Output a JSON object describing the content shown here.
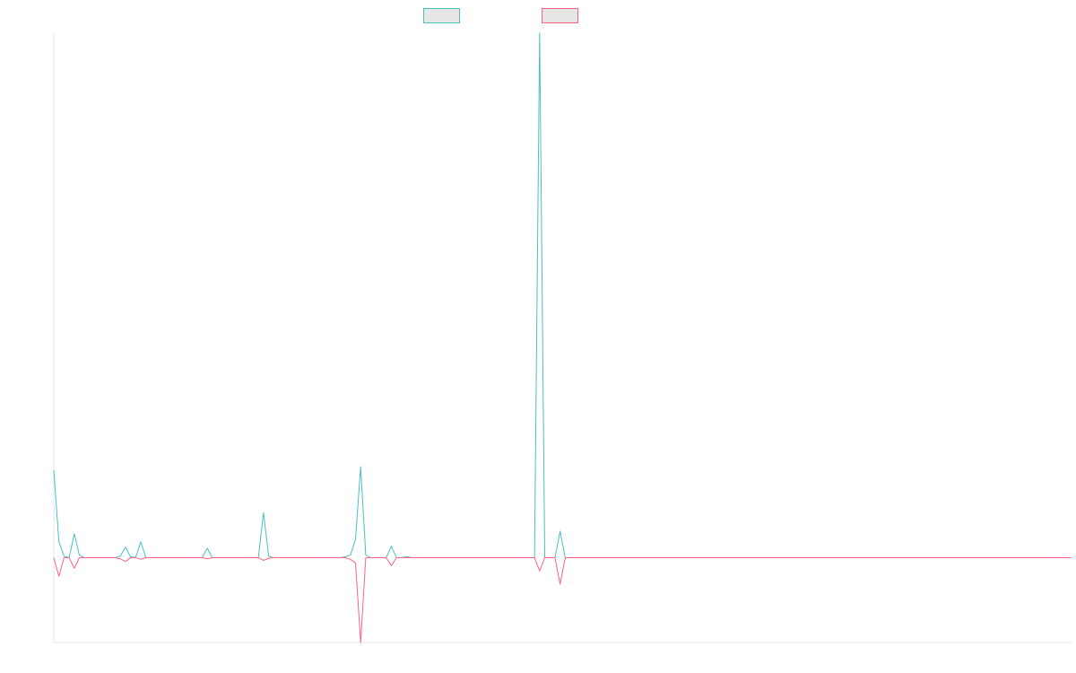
{
  "chart_data": {
    "type": "line",
    "title": "",
    "xlabel": "",
    "ylabel": "",
    "legend_position": "top-center",
    "grid": false,
    "x_count": 200,
    "ylim": [
      -16,
      99
    ],
    "colors": {
      "series_a": "#4bc0c0",
      "series_b": "#ff6384",
      "legend_fill": "#e6e6e6",
      "axis": "#e6e6e6"
    },
    "series": [
      {
        "key": "series_a",
        "color": "#4bc0c0",
        "points": [
          [
            0,
            16.5
          ],
          [
            1,
            3.0
          ],
          [
            2,
            0.3
          ],
          [
            3,
            0
          ],
          [
            4,
            4.5
          ],
          [
            5,
            0.5
          ],
          [
            13,
            0.3
          ],
          [
            14,
            2.0
          ],
          [
            15,
            0.2
          ],
          [
            16,
            0
          ],
          [
            17,
            3.0
          ],
          [
            18,
            0
          ],
          [
            29,
            0
          ],
          [
            30,
            1.8
          ],
          [
            31,
            0
          ],
          [
            40,
            0
          ],
          [
            41,
            8.5
          ],
          [
            42,
            0.3
          ],
          [
            57,
            0.2
          ],
          [
            58,
            0.5
          ],
          [
            59,
            3.5
          ],
          [
            60,
            17.2
          ],
          [
            61,
            0.5
          ],
          [
            65,
            0
          ],
          [
            66,
            2.2
          ],
          [
            67,
            0
          ],
          [
            68,
            0
          ],
          [
            69,
            0.2
          ],
          [
            70,
            0
          ],
          [
            94,
            0
          ],
          [
            95,
            99
          ],
          [
            96,
            0
          ],
          [
            98,
            0
          ],
          [
            99,
            5.0
          ],
          [
            100,
            0
          ],
          [
            199,
            0
          ]
        ]
      },
      {
        "key": "series_b",
        "color": "#ff6384",
        "points": [
          [
            0,
            0
          ],
          [
            1,
            -3.5
          ],
          [
            2,
            0
          ],
          [
            3,
            0
          ],
          [
            4,
            -2.0
          ],
          [
            5,
            0
          ],
          [
            13,
            -0.2
          ],
          [
            14,
            -0.7
          ],
          [
            15,
            0
          ],
          [
            16,
            0
          ],
          [
            17,
            -0.3
          ],
          [
            18,
            0
          ],
          [
            29,
            0
          ],
          [
            30,
            -0.2
          ],
          [
            31,
            0
          ],
          [
            40,
            0
          ],
          [
            41,
            -0.5
          ],
          [
            42,
            -0.1
          ],
          [
            57,
            0
          ],
          [
            58,
            -0.3
          ],
          [
            59,
            -1.0
          ],
          [
            60,
            -16
          ],
          [
            61,
            0
          ],
          [
            65,
            0
          ],
          [
            66,
            -1.5
          ],
          [
            67,
            0
          ],
          [
            68,
            0
          ],
          [
            69,
            0
          ],
          [
            70,
            0
          ],
          [
            94,
            0
          ],
          [
            95,
            -2.5
          ],
          [
            96,
            0
          ],
          [
            98,
            0
          ],
          [
            99,
            -5.0
          ],
          [
            100,
            0
          ],
          [
            199,
            0
          ]
        ]
      }
    ]
  }
}
